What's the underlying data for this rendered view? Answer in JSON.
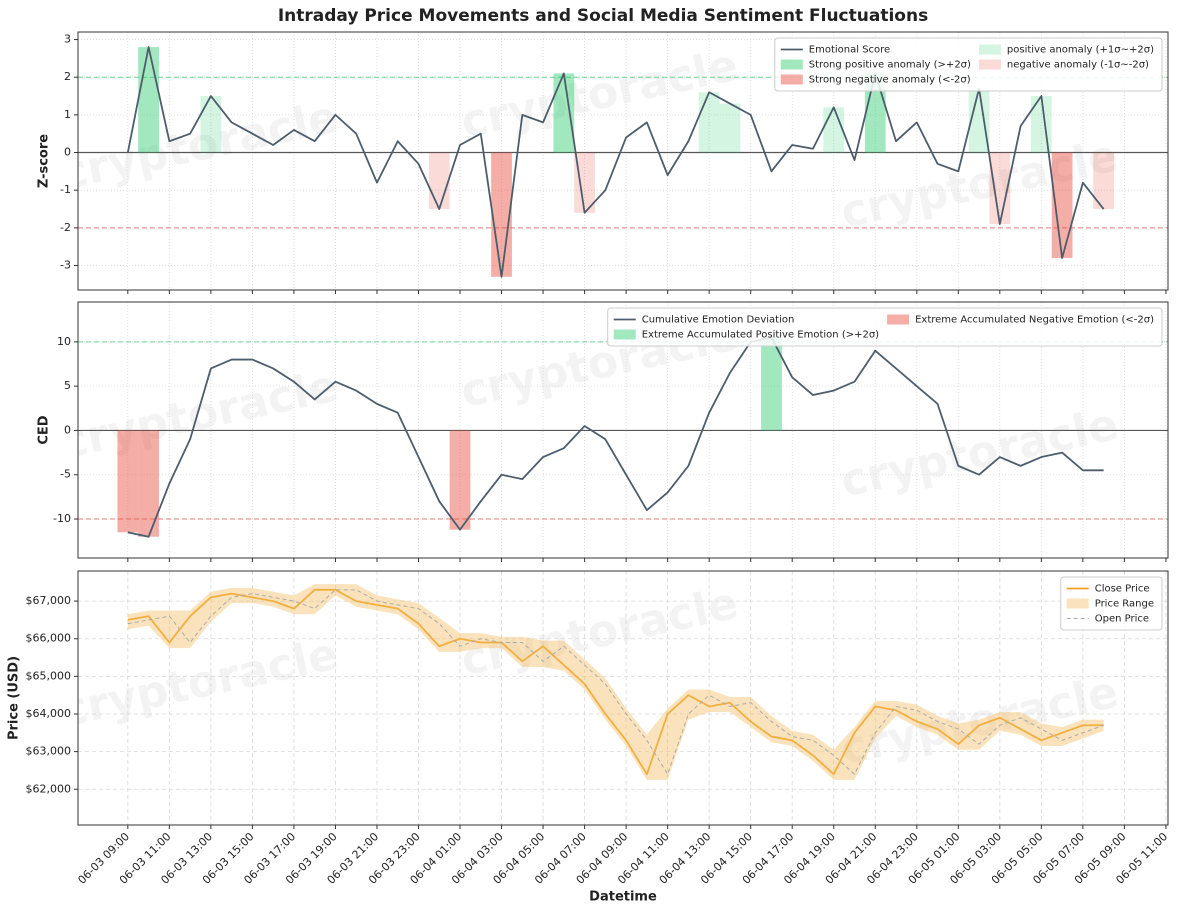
{
  "title": "Intraday Price Movements and Social Media Sentiment Fluctuations",
  "watermark": "cryptoracle",
  "chart_data": [
    {
      "type": "line",
      "ylabel": "Z-score",
      "x": [
        "06-03 09:00",
        "06-03 10:00",
        "06-03 11:00",
        "06-03 12:00",
        "06-03 13:00",
        "06-03 14:00",
        "06-03 15:00",
        "06-03 16:00",
        "06-03 17:00",
        "06-03 18:00",
        "06-03 19:00",
        "06-03 20:00",
        "06-03 21:00",
        "06-03 22:00",
        "06-03 23:00",
        "06-04 00:00",
        "06-04 01:00",
        "06-04 02:00",
        "06-04 03:00",
        "06-04 04:00",
        "06-04 05:00",
        "06-04 06:00",
        "06-04 07:00",
        "06-04 08:00",
        "06-04 09:00",
        "06-04 10:00",
        "06-04 11:00",
        "06-04 12:00",
        "06-04 13:00",
        "06-04 14:00",
        "06-04 15:00",
        "06-04 16:00",
        "06-04 17:00",
        "06-04 18:00",
        "06-04 19:00",
        "06-04 20:00",
        "06-04 21:00",
        "06-04 22:00",
        "06-04 23:00",
        "06-05 00:00",
        "06-05 01:00",
        "06-05 02:00",
        "06-05 03:00",
        "06-05 04:00",
        "06-05 05:00",
        "06-05 06:00",
        "06-05 07:00",
        "06-05 08:00"
      ],
      "series": [
        {
          "name": "Emotional Score",
          "color": "#4d5d6c",
          "values": [
            0,
            2.8,
            0.3,
            0.5,
            1.5,
            0.8,
            0.5,
            0.2,
            0.6,
            0.3,
            1.0,
            0.5,
            -0.8,
            0.3,
            -0.3,
            -1.5,
            0.2,
            0.5,
            -3.3,
            1.0,
            0.8,
            2.1,
            -1.6,
            -1.0,
            0.4,
            0.8,
            -0.6,
            0.3,
            1.6,
            1.3,
            1.0,
            -0.5,
            0.2,
            0.1,
            1.2,
            -0.2,
            2.1,
            0.3,
            0.8,
            -0.3,
            -0.5,
            1.7,
            -1.9,
            0.7,
            1.5,
            -2.8,
            -0.8,
            -1.5
          ]
        }
      ],
      "anomalies": [
        {
          "name": "Strong positive anomaly (>+2σ)",
          "color": "#2ecc71",
          "opacity": 0.45,
          "range": [
            2,
            null
          ]
        },
        {
          "name": "Strong negative anomaly (<-2σ)",
          "color": "#e74c3c",
          "opacity": 0.45,
          "range": [
            null,
            -2
          ]
        },
        {
          "name": "positive anomaly (+1σ~+2σ)",
          "color": "#2ecc71",
          "opacity": 0.2,
          "range": [
            1,
            2
          ]
        },
        {
          "name": "negative anomaly (-1σ~-2σ)",
          "color": "#e74c3c",
          "opacity": 0.2,
          "range": [
            -2,
            -1
          ]
        }
      ],
      "ref_lines": [
        {
          "value": 2,
          "color": "#2ecc71",
          "dash": true
        },
        {
          "value": -2,
          "color": "#e74c3c",
          "dash": true
        },
        {
          "value": 0,
          "color": "#555555",
          "dash": false
        }
      ],
      "xlim": [
        "06-03 06:36",
        "06-05 11:06"
      ],
      "xticks": [
        "06-03 09:00",
        "06-03 11:00",
        "06-03 13:00",
        "06-03 15:00",
        "06-03 17:00",
        "06-03 19:00",
        "06-03 21:00",
        "06-03 23:00",
        "06-04 01:00",
        "06-04 03:00",
        "06-04 05:00",
        "06-04 07:00",
        "06-04 09:00",
        "06-04 11:00",
        "06-04 13:00",
        "06-04 15:00",
        "06-04 17:00",
        "06-04 19:00",
        "06-04 21:00",
        "06-04 23:00",
        "06-05 01:00",
        "06-05 03:00",
        "06-05 05:00",
        "06-05 07:00",
        "06-05 09:00",
        "06-05 11:00"
      ],
      "ylim": [
        -3.65,
        3.2
      ],
      "yticks": [
        -3,
        -2,
        -1,
        0,
        1,
        2,
        3
      ],
      "grid": true,
      "legend": "upper right",
      "legend_columns": 2
    },
    {
      "type": "line",
      "ylabel": "CED",
      "x": [
        "06-03 09:00",
        "06-03 10:00",
        "06-03 11:00",
        "06-03 12:00",
        "06-03 13:00",
        "06-03 14:00",
        "06-03 15:00",
        "06-03 16:00",
        "06-03 17:00",
        "06-03 18:00",
        "06-03 19:00",
        "06-03 20:00",
        "06-03 21:00",
        "06-03 22:00",
        "06-03 23:00",
        "06-04 00:00",
        "06-04 01:00",
        "06-04 02:00",
        "06-04 03:00",
        "06-04 04:00",
        "06-04 05:00",
        "06-04 06:00",
        "06-04 07:00",
        "06-04 08:00",
        "06-04 09:00",
        "06-04 10:00",
        "06-04 11:00",
        "06-04 12:00",
        "06-04 13:00",
        "06-04 14:00",
        "06-04 15:00",
        "06-04 16:00",
        "06-04 17:00",
        "06-04 18:00",
        "06-04 19:00",
        "06-04 20:00",
        "06-04 21:00",
        "06-04 22:00",
        "06-04 23:00",
        "06-05 00:00",
        "06-05 01:00",
        "06-05 02:00",
        "06-05 03:00",
        "06-05 04:00",
        "06-05 05:00",
        "06-05 06:00",
        "06-05 07:00",
        "06-05 08:00"
      ],
      "series": [
        {
          "name": "Cumulative Emotion Deviation",
          "color": "#4d5d6c",
          "values": [
            -11.5,
            -12,
            -6,
            -1,
            7,
            8,
            8,
            7,
            5.5,
            3.5,
            5.5,
            4.5,
            3,
            2,
            -3,
            -8,
            -11.2,
            -8,
            -5,
            -5.5,
            -3,
            -2,
            0.5,
            -1,
            -5,
            -9,
            -7,
            -4,
            2,
            6.5,
            10,
            10.5,
            6,
            4,
            4.5,
            5.5,
            9,
            7,
            5,
            3,
            -4,
            -5,
            -3,
            -4,
            -3,
            -2.5,
            -4.5,
            -4.5
          ]
        }
      ],
      "anomalies": [
        {
          "name": "Extreme Accumulated Positive Emotion (>+2σ)",
          "color": "#2ecc71",
          "opacity": 0.45,
          "range": [
            10,
            null
          ]
        },
        {
          "name": "Extreme Accumulated Negative Emotion (<-2σ)",
          "color": "#e74c3c",
          "opacity": 0.45,
          "range": [
            null,
            -10
          ]
        }
      ],
      "ref_lines": [
        {
          "value": 10,
          "color": "#2ecc71",
          "dash": true
        },
        {
          "value": -10,
          "color": "#e74c3c",
          "dash": true
        },
        {
          "value": 0,
          "color": "#555555",
          "dash": false
        }
      ],
      "xlim": [
        "06-03 06:36",
        "06-05 11:06"
      ],
      "xticks": [
        "06-03 09:00",
        "06-03 11:00",
        "06-03 13:00",
        "06-03 15:00",
        "06-03 17:00",
        "06-03 19:00",
        "06-03 21:00",
        "06-03 23:00",
        "06-04 01:00",
        "06-04 03:00",
        "06-04 05:00",
        "06-04 07:00",
        "06-04 09:00",
        "06-04 11:00",
        "06-04 13:00",
        "06-04 15:00",
        "06-04 17:00",
        "06-04 19:00",
        "06-04 21:00",
        "06-04 23:00",
        "06-05 01:00",
        "06-05 03:00",
        "06-05 05:00",
        "06-05 07:00",
        "06-05 09:00",
        "06-05 11:00"
      ],
      "ylim": [
        -14.4,
        14.5
      ],
      "yticks": [
        -10,
        -5,
        0,
        5,
        10
      ],
      "grid": true,
      "legend": "upper right",
      "legend_columns": 2
    },
    {
      "type": "line",
      "ylabel": "Price (USD)",
      "xlabel": "Datetime",
      "x": [
        "06-03 09:00",
        "06-03 10:00",
        "06-03 11:00",
        "06-03 12:00",
        "06-03 13:00",
        "06-03 14:00",
        "06-03 15:00",
        "06-03 16:00",
        "06-03 17:00",
        "06-03 18:00",
        "06-03 19:00",
        "06-03 20:00",
        "06-03 21:00",
        "06-03 22:00",
        "06-03 23:00",
        "06-04 00:00",
        "06-04 01:00",
        "06-04 02:00",
        "06-04 03:00",
        "06-04 04:00",
        "06-04 05:00",
        "06-04 06:00",
        "06-04 07:00",
        "06-04 08:00",
        "06-04 09:00",
        "06-04 10:00",
        "06-04 11:00",
        "06-04 12:00",
        "06-04 13:00",
        "06-04 14:00",
        "06-04 15:00",
        "06-04 16:00",
        "06-04 17:00",
        "06-04 18:00",
        "06-04 19:00",
        "06-04 20:00",
        "06-04 21:00",
        "06-04 22:00",
        "06-04 23:00",
        "06-05 00:00",
        "06-05 01:00",
        "06-05 02:00",
        "06-05 03:00",
        "06-05 04:00",
        "06-05 05:00",
        "06-05 06:00",
        "06-05 07:00",
        "06-05 08:00"
      ],
      "series": [
        {
          "name": "Close Price",
          "color": "#f0a020",
          "values": [
            66500,
            66600,
            65900,
            66600,
            67100,
            67200,
            67100,
            67000,
            66800,
            67300,
            67300,
            67000,
            66900,
            66800,
            66400,
            65800,
            66000,
            65900,
            65900,
            65400,
            65800,
            65300,
            64800,
            64000,
            63300,
            62400,
            64000,
            64500,
            64200,
            64300,
            63800,
            63400,
            63300,
            62900,
            62400,
            63500,
            64200,
            64100,
            63800,
            63600,
            63200,
            63700,
            63900,
            63600,
            63300,
            63500,
            63700,
            63700
          ]
        },
        {
          "name": "Price Range",
          "color": "#f5c26b",
          "opacity": 0.45,
          "high": [
            66650,
            66750,
            66750,
            66750,
            67250,
            67350,
            67350,
            67250,
            67150,
            67450,
            67450,
            67450,
            67150,
            67050,
            66950,
            66550,
            66150,
            66150,
            66050,
            66050,
            65950,
            65950,
            65450,
            64950,
            64150,
            63450,
            64150,
            64650,
            64650,
            64450,
            64450,
            63950,
            63550,
            63450,
            63050,
            63650,
            64350,
            64350,
            64250,
            63950,
            63750,
            63850,
            64050,
            64050,
            63750,
            63650,
            63850,
            63850
          ],
          "low": [
            66250,
            66350,
            65750,
            65750,
            66450,
            66950,
            66950,
            66850,
            66650,
            66650,
            67150,
            66850,
            66750,
            66650,
            66250,
            65650,
            65650,
            65750,
            65750,
            65250,
            65250,
            65150,
            64650,
            63850,
            63150,
            62250,
            62250,
            63850,
            64050,
            64050,
            63650,
            63250,
            63150,
            62750,
            62250,
            62250,
            63350,
            63950,
            63650,
            63450,
            63050,
            63050,
            63550,
            63450,
            63150,
            63150,
            63350,
            63550
          ]
        },
        {
          "name": "Open Price",
          "color": "#aaaaaa",
          "dash": true,
          "values": [
            66400,
            66500,
            66600,
            65900,
            66600,
            67100,
            67200,
            67100,
            67000,
            66800,
            67300,
            67300,
            67000,
            66900,
            66800,
            66400,
            65800,
            66000,
            65900,
            65900,
            65400,
            65800,
            65300,
            64800,
            64000,
            63300,
            62400,
            64000,
            64500,
            64200,
            64300,
            63800,
            63400,
            63300,
            62900,
            62400,
            63500,
            64200,
            64100,
            63800,
            63600,
            63200,
            63700,
            63900,
            63600,
            63300,
            63500,
            63700
          ]
        }
      ],
      "xlim": [
        "06-03 06:36",
        "06-05 11:06"
      ],
      "xticks": [
        "06-03 09:00",
        "06-03 11:00",
        "06-03 13:00",
        "06-03 15:00",
        "06-03 17:00",
        "06-03 19:00",
        "06-03 21:00",
        "06-03 23:00",
        "06-04 01:00",
        "06-04 03:00",
        "06-04 05:00",
        "06-04 07:00",
        "06-04 09:00",
        "06-04 11:00",
        "06-04 13:00",
        "06-04 15:00",
        "06-04 17:00",
        "06-04 19:00",
        "06-04 21:00",
        "06-04 23:00",
        "06-05 01:00",
        "06-05 03:00",
        "06-05 05:00",
        "06-05 07:00",
        "06-05 09:00",
        "06-05 11:00"
      ],
      "ylim": [
        61050,
        67800
      ],
      "yticks": [
        {
          "value": 62000,
          "label": "$62,000"
        },
        {
          "value": 63000,
          "label": "$63,000"
        },
        {
          "value": 64000,
          "label": "$64,000"
        },
        {
          "value": 65000,
          "label": "$65,000"
        },
        {
          "value": 66000,
          "label": "$66,000"
        },
        {
          "value": 67000,
          "label": "$67,000"
        }
      ],
      "grid": true,
      "grid_dash": true,
      "legend": "upper right",
      "legend_columns": 1
    }
  ]
}
